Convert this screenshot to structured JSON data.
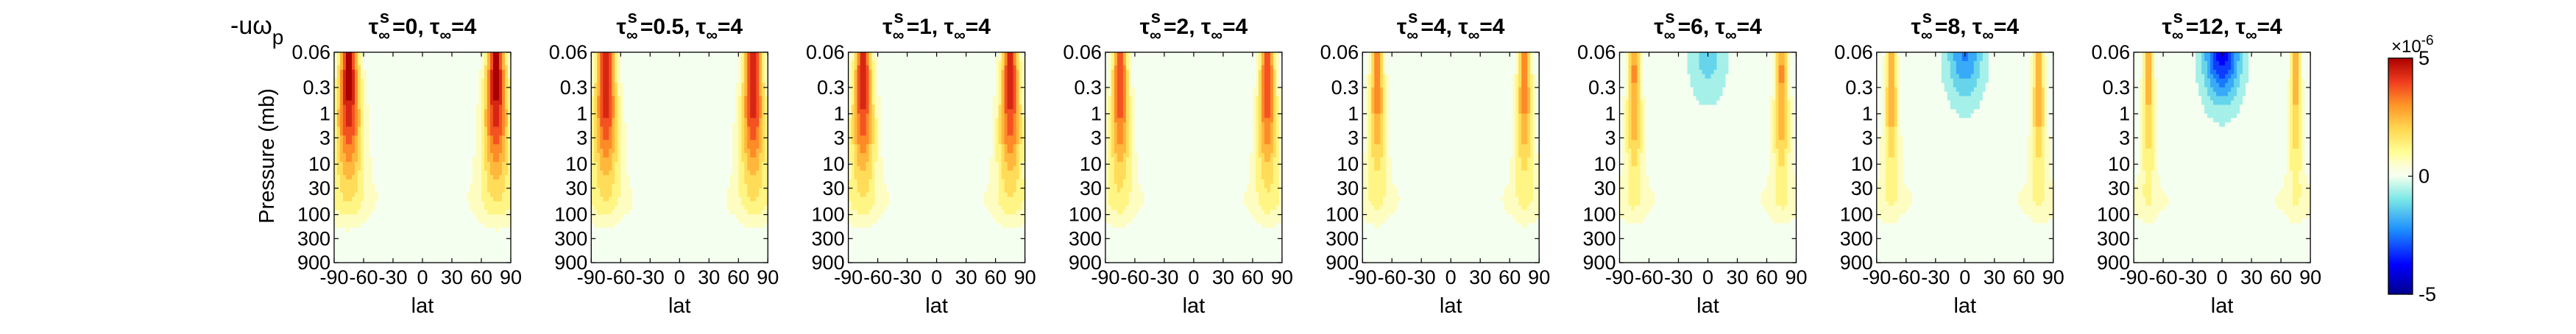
{
  "chart_data": {
    "type": "heatmap",
    "figure_label": "-uω",
    "figure_label_sub": "p",
    "ylabel": "Pressure (mb)",
    "xlabel": "lat",
    "x_ticks": [
      "-90",
      "-60",
      "-30",
      "0",
      "30",
      "60",
      "90"
    ],
    "y_ticks": [
      "0.06",
      "0.3",
      "1",
      "3",
      "10",
      "30",
      "100",
      "300",
      "900"
    ],
    "xlim": [
      -90,
      90
    ],
    "ylim": [
      0.06,
      900
    ],
    "y_scale": "log",
    "y_reversed": true,
    "colormap": "jet",
    "colorbar": {
      "range": [
        -5,
        5
      ],
      "ticks": [
        "5",
        "0",
        "-5"
      ],
      "exponent": "×10",
      "exponent_power": "-6",
      "colors": [
        "#00008b",
        "#0000ff",
        "#1e90ff",
        "#40e0d0",
        "#f0fff0",
        "#ffff66",
        "#ffa500",
        "#ff4500",
        "#b40000"
      ]
    },
    "panels": [
      {
        "tau_s": "0",
        "tau_inf": "4",
        "jet_strength": 1.0,
        "jet_width": 9.0,
        "center_negative": 0.0
      },
      {
        "tau_s": "0.5",
        "tau_inf": "4",
        "jet_strength": 0.95,
        "jet_width": 8.5,
        "center_negative": 0.0
      },
      {
        "tau_s": "1",
        "tau_inf": "4",
        "jet_strength": 0.9,
        "jet_width": 8.0,
        "center_negative": 0.0
      },
      {
        "tau_s": "2",
        "tau_inf": "4",
        "jet_strength": 0.8,
        "jet_width": 7.0,
        "center_negative": 0.0
      },
      {
        "tau_s": "4",
        "tau_inf": "4",
        "jet_strength": 0.65,
        "jet_width": 6.0,
        "center_negative": 0.0
      },
      {
        "tau_s": "6",
        "tau_inf": "4",
        "jet_strength": 0.6,
        "jet_width": 5.5,
        "center_negative": 0.25
      },
      {
        "tau_s": "8",
        "tau_inf": "4",
        "jet_strength": 0.55,
        "jet_width": 5.0,
        "center_negative": 0.45
      },
      {
        "tau_s": "12",
        "tau_inf": "4",
        "jet_strength": 0.5,
        "jet_width": 4.5,
        "center_negative": 0.75
      }
    ]
  }
}
